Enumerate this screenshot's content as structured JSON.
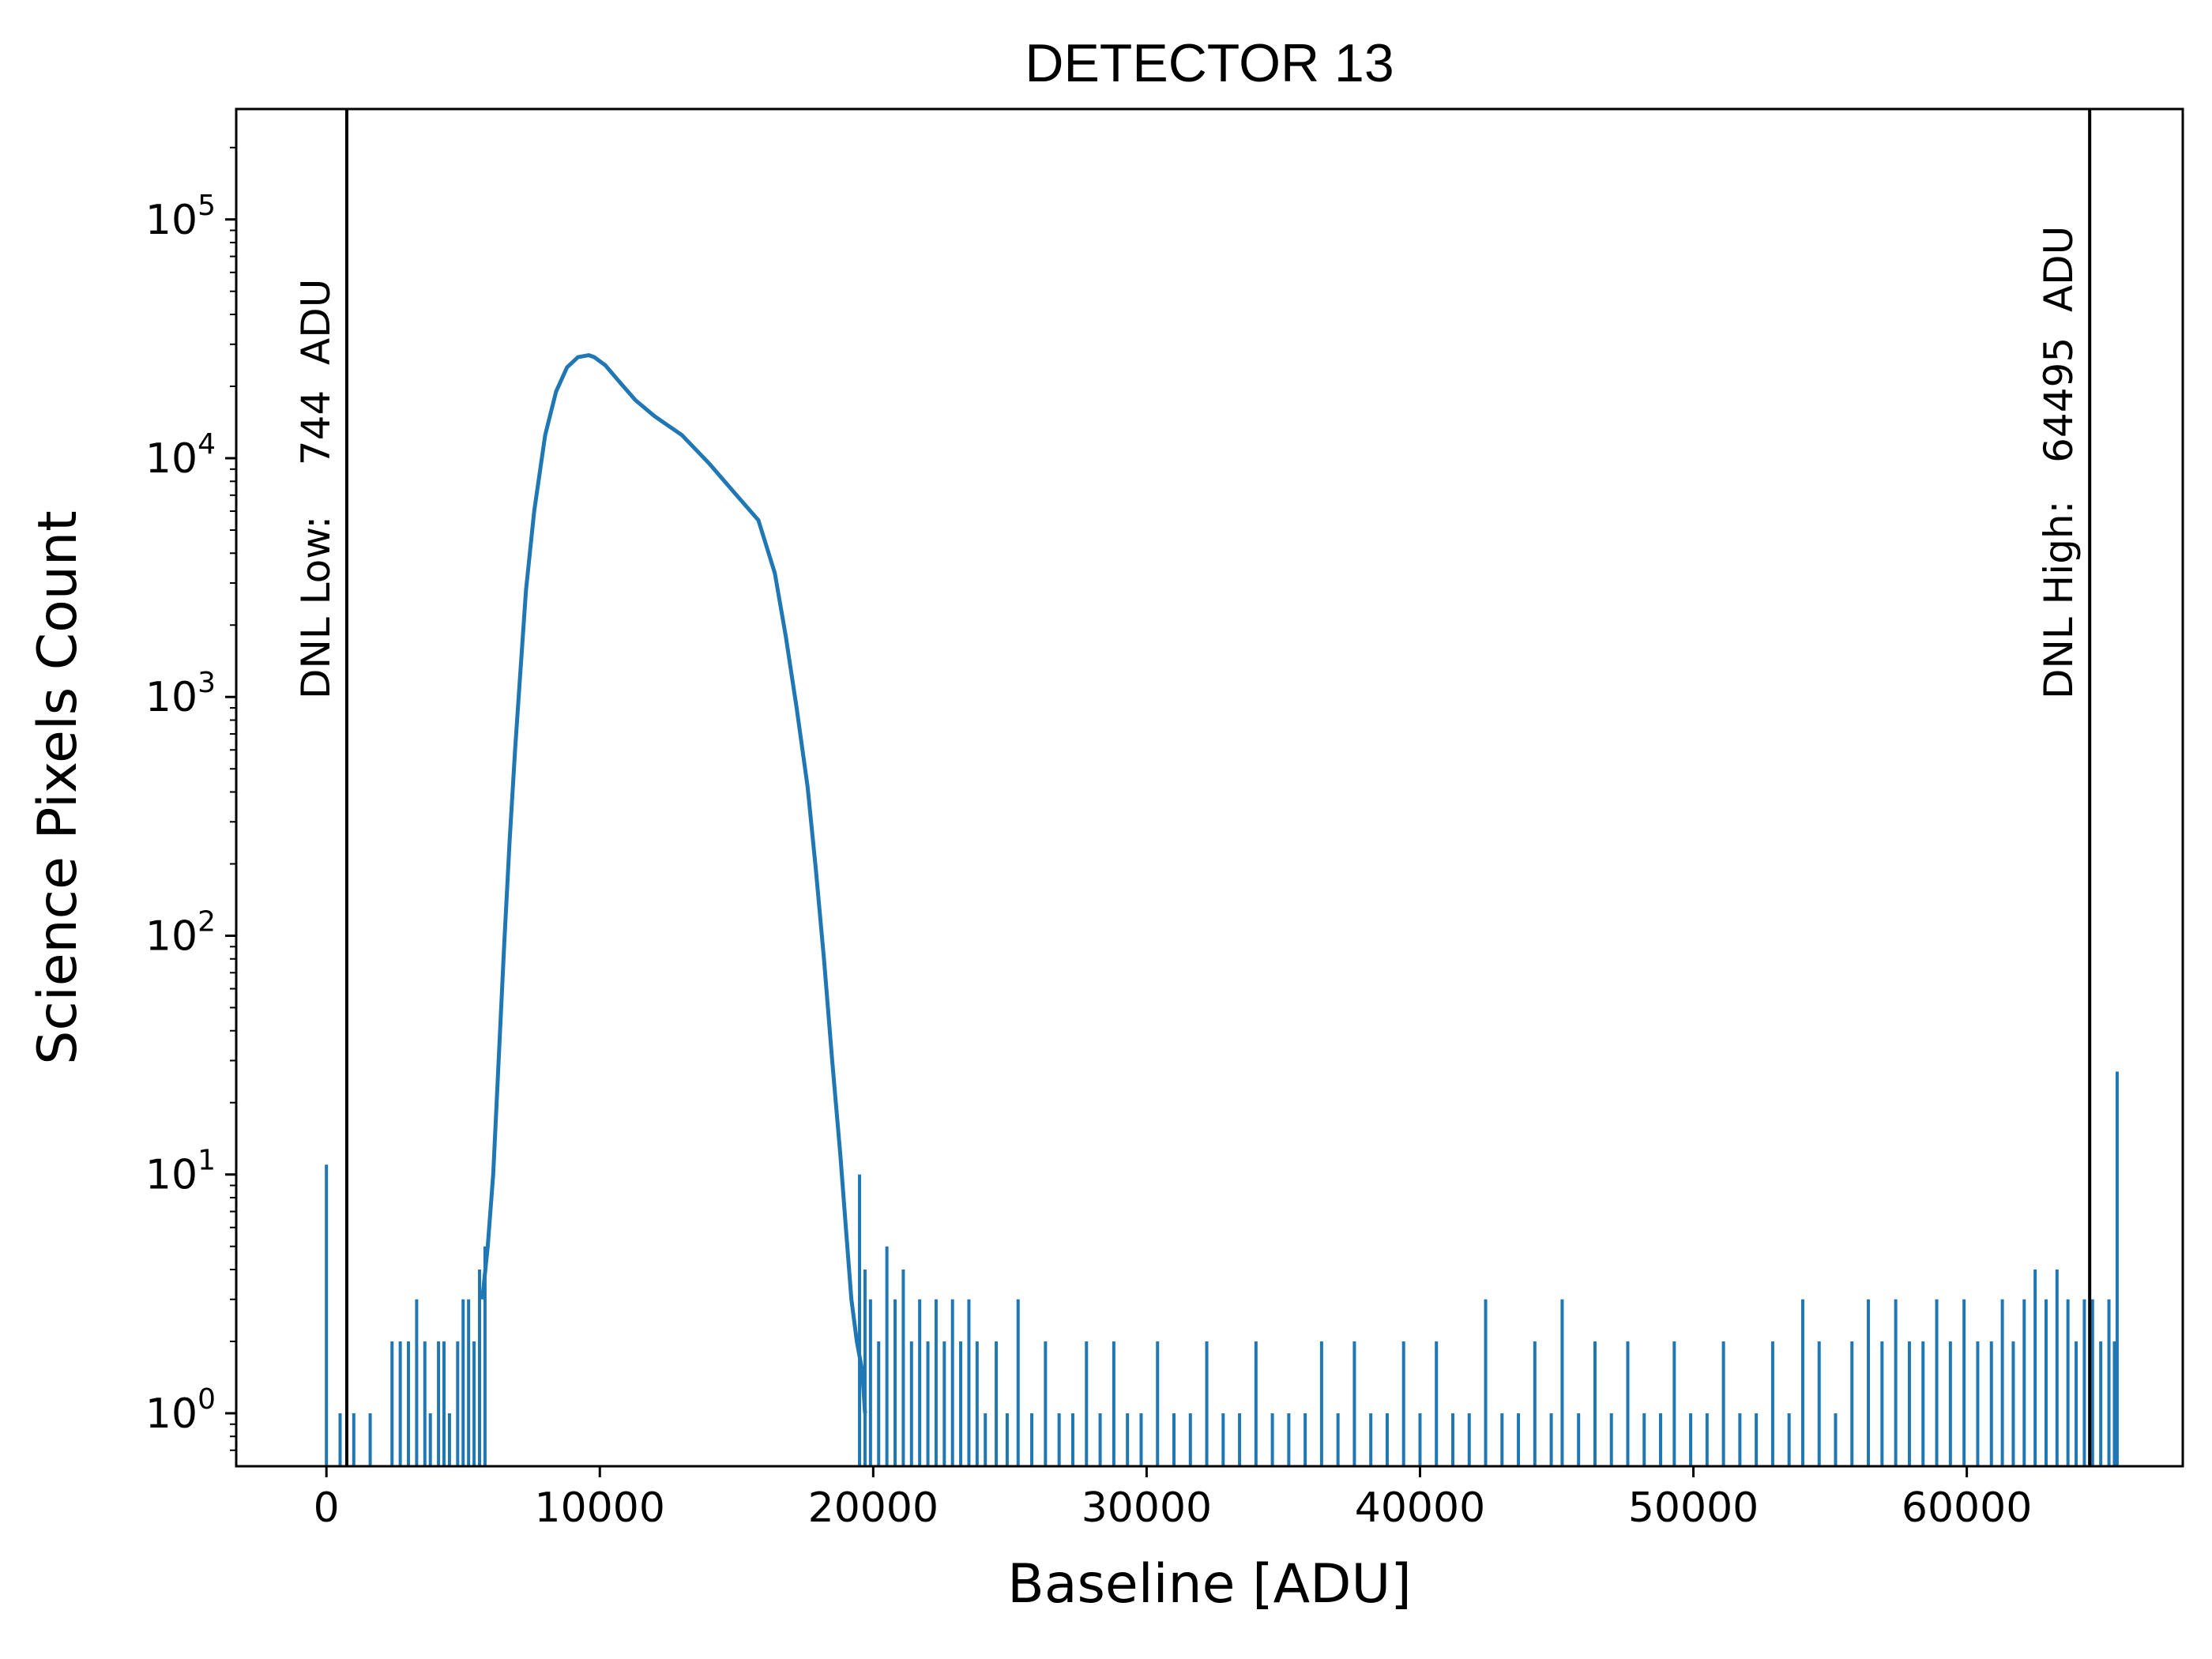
{
  "chart_data": {
    "type": "histogram",
    "title": "DETECTOR 13",
    "xlabel": "Baseline [ADU]",
    "ylabel": "Science Pixels Count",
    "yscale": "log",
    "xlim": [
      -3300,
      67900
    ],
    "ylim": [
      0.6,
      290000
    ],
    "x_ticks": [
      0,
      10000,
      20000,
      30000,
      40000,
      50000,
      60000
    ],
    "x_tick_labels": [
      "0",
      "10000",
      "20000",
      "30000",
      "40000",
      "50000",
      "60000"
    ],
    "y_ticks": [
      1,
      10,
      100,
      1000,
      10000,
      100000
    ],
    "y_tick_bases": [
      "10",
      "10",
      "10",
      "10",
      "10",
      "10"
    ],
    "y_tick_exponents": [
      "0",
      "1",
      "2",
      "3",
      "4",
      "5"
    ],
    "grid": false,
    "series_color": "#1f77b4",
    "main_curve": {
      "x": [
        5700,
        5900,
        6100,
        6300,
        6500,
        6700,
        6900,
        7100,
        7300,
        7600,
        8000,
        8400,
        8800,
        9200,
        9600,
        9800,
        10200,
        10700,
        11300,
        12000,
        13000,
        14000,
        15000,
        15800,
        16400,
        16800,
        17200,
        17600,
        17900,
        18200,
        18500,
        18800,
        19000,
        19200,
        19400,
        19600,
        19700
      ],
      "y": [
        3,
        5,
        10,
        30,
        90,
        250,
        600,
        1300,
        2800,
        6000,
        12500,
        19000,
        24000,
        26500,
        27000,
        26500,
        24500,
        21000,
        17500,
        15000,
        12500,
        9500,
        7000,
        5500,
        3300,
        1800,
        900,
        420,
        190,
        80,
        30,
        12,
        6,
        3,
        2,
        1.5,
        1
      ]
    },
    "spikes": {
      "x": [
        0,
        500,
        1000,
        1600,
        2400,
        2700,
        3000,
        3300,
        3600,
        3800,
        4100,
        4300,
        4500,
        4800,
        5000,
        5200,
        5400,
        5600,
        5800,
        19500,
        19700,
        19900,
        20200,
        20500,
        20800,
        21100,
        21400,
        21700,
        22000,
        22300,
        22600,
        22900,
        23200,
        23500,
        23800,
        24100,
        24500,
        24900,
        25300,
        25800,
        26300,
        26800,
        27300,
        27800,
        28300,
        28800,
        29300,
        29800,
        30400,
        31000,
        31600,
        32200,
        32800,
        33400,
        34000,
        34600,
        35200,
        35800,
        36400,
        37000,
        37600,
        38200,
        38800,
        39400,
        40000,
        40600,
        41200,
        41800,
        42400,
        43000,
        43600,
        44200,
        44800,
        45200,
        45800,
        46400,
        47000,
        47600,
        48200,
        48800,
        49300,
        49900,
        50500,
        51100,
        51700,
        52300,
        52900,
        53500,
        54000,
        54600,
        55200,
        55800,
        56400,
        56900,
        57400,
        57900,
        58400,
        58900,
        59400,
        59900,
        60400,
        60900,
        61300,
        61700,
        62100,
        62500,
        62900,
        63300,
        63700,
        64000,
        64300,
        64600,
        64900,
        65200,
        65400,
        65500
      ],
      "y": [
        11,
        1,
        1,
        1,
        2,
        2,
        2,
        3,
        2,
        1,
        2,
        2,
        1,
        2,
        3,
        3,
        2,
        4,
        5,
        10,
        4,
        3,
        2,
        5,
        3,
        4,
        2,
        3,
        2,
        3,
        2,
        3,
        2,
        3,
        2,
        1,
        2,
        1,
        3,
        1,
        2,
        1,
        1,
        2,
        1,
        2,
        1,
        1,
        2,
        1,
        1,
        2,
        1,
        1,
        2,
        1,
        1,
        1,
        2,
        1,
        2,
        1,
        1,
        2,
        1,
        2,
        1,
        1,
        3,
        1,
        1,
        2,
        1,
        3,
        1,
        2,
        1,
        2,
        1,
        1,
        2,
        1,
        1,
        2,
        1,
        1,
        2,
        1,
        3,
        2,
        1,
        2,
        3,
        2,
        3,
        2,
        2,
        3,
        2,
        3,
        2,
        2,
        3,
        2,
        3,
        4,
        3,
        4,
        3,
        2,
        3,
        3,
        2,
        3,
        2,
        27
      ]
    },
    "vlines": [
      {
        "x": 744,
        "label": "DNL Low:    744  ADU"
      },
      {
        "x": 64495,
        "label": "DNL High:   64495  ADU"
      }
    ]
  }
}
